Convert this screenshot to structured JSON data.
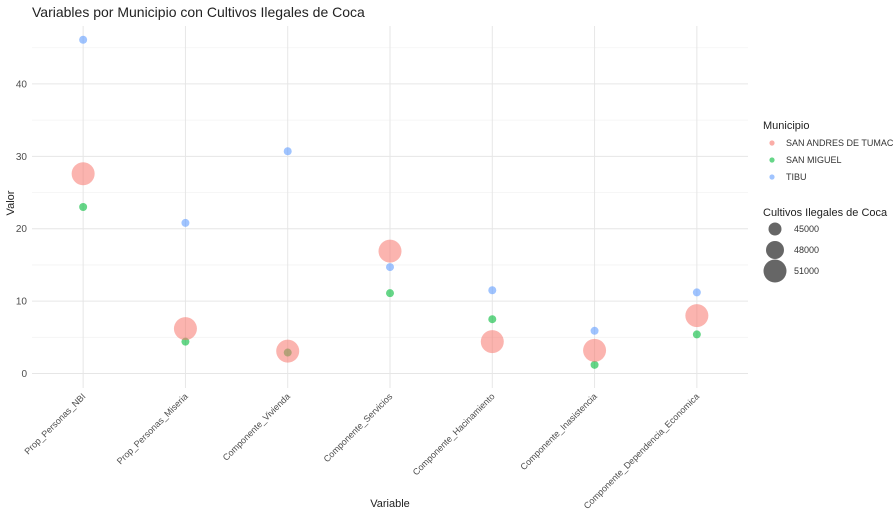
{
  "chart_data": {
    "type": "scatter",
    "title": "Variables por Municipio con Cultivos Ilegales de Coca",
    "xlabel": "Variable",
    "ylabel": "Valor",
    "categories": [
      "Prop_Personas_NBI",
      "Prop_Personas_Miseria",
      "Componente_Vivienda",
      "Componente_Servicios",
      "Componente_Hacinamiento",
      "Componente_Inasistencia",
      "Componente_Dependencia_Economica"
    ],
    "ylim": [
      -2,
      48
    ],
    "yticks": [
      0,
      10,
      20,
      30,
      40
    ],
    "grid": true,
    "legend_position": "right",
    "series": [
      {
        "name": "SAN ANDRES DE TUMACO",
        "color": "#F8766D",
        "size_value": 51000,
        "values": [
          27.6,
          6.2,
          3.1,
          16.9,
          4.4,
          3.2,
          8.0
        ]
      },
      {
        "name": "SAN MIGUEL",
        "color": "#00BA38",
        "size_value": 42000,
        "values": [
          23.0,
          4.4,
          2.9,
          11.1,
          7.5,
          1.2,
          5.4
        ]
      },
      {
        "name": "TIBU",
        "color": "#619CFF",
        "size_value": 42000,
        "values": [
          46.1,
          20.8,
          30.7,
          14.7,
          11.5,
          5.9,
          11.2
        ]
      }
    ],
    "color_legend_title": "Municipio",
    "size_legend": {
      "title": "Cultivos Ilegales de Coca",
      "breaks": [
        45000,
        48000,
        51000
      ],
      "labels": [
        "45000",
        "48000",
        "51000"
      ]
    }
  }
}
